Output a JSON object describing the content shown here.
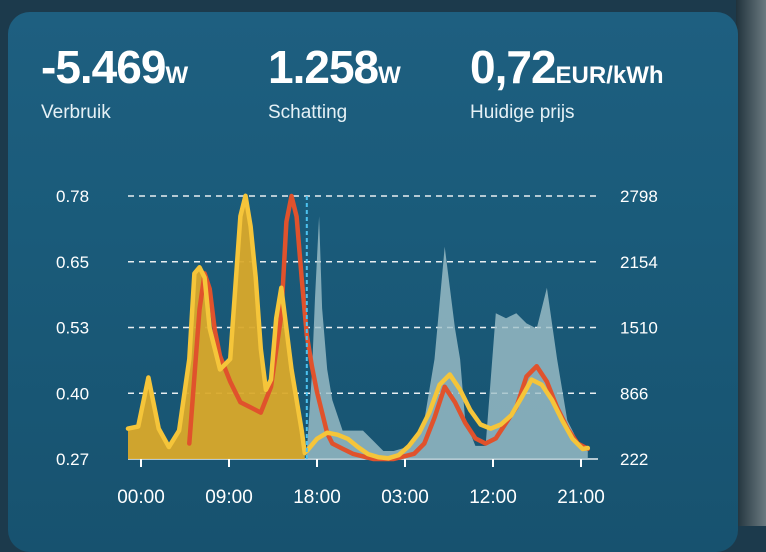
{
  "stats": [
    {
      "value": "-5.469",
      "unit": "W",
      "label": "Verbruik"
    },
    {
      "value": "1.258",
      "unit": "W",
      "label": "Schatting"
    },
    {
      "value": "0,72",
      "unit": "EUR/kWh",
      "label": "Huidige prijs"
    }
  ],
  "colors": {
    "card_bg": "#1b5a79",
    "yellow": "#f5c53a",
    "yellow_fill": "#d9a92a",
    "red": "#e0522c",
    "grey_fill": "#9fc0c9",
    "now_marker": "#4cc3f0"
  },
  "chart_data": {
    "type": "line",
    "x_labels": [
      "00:00",
      "09:00",
      "18:00",
      "03:00",
      "12:00",
      "21:00"
    ],
    "y_left_ticks": [
      "0.78",
      "0.65",
      "0.53",
      "0.40",
      "0.27"
    ],
    "y_right_ticks": [
      "2798",
      "2154",
      "1510",
      "866",
      "222"
    ],
    "y_left_range": [
      0.27,
      0.78
    ],
    "y_right_range": [
      222,
      2798
    ],
    "grid": true,
    "series": [
      {
        "kind": "area",
        "color": "#f5c53a",
        "axis": "right",
        "x": [
          0,
          1,
          2,
          3,
          4,
          5,
          6,
          6.5,
          7,
          7.5,
          8,
          9,
          10,
          11,
          11.5,
          12,
          12.5,
          13,
          13.5,
          14,
          14.5,
          15,
          16,
          17,
          17.3
        ],
        "values": [
          520,
          540,
          1020,
          520,
          340,
          500,
          1200,
          2040,
          2100,
          2000,
          1500,
          1100,
          1200,
          2600,
          2800,
          2500,
          2000,
          1300,
          900,
          1000,
          1600,
          1900,
          1100,
          500,
          280
        ]
      },
      {
        "kind": "area",
        "color": "#9fc0c9",
        "axis": "right",
        "x": [
          17.5,
          18,
          18.3,
          18.7,
          19,
          19.5,
          20,
          21,
          22,
          23,
          24,
          25,
          26,
          27,
          28,
          29,
          30,
          31,
          32,
          32.5,
          33,
          34,
          35,
          36,
          37,
          38,
          39,
          40,
          41,
          42,
          43,
          44,
          45
        ],
        "values": [
          300,
          1050,
          1800,
          2600,
          1700,
          1100,
          800,
          500,
          500,
          500,
          400,
          300,
          300,
          330,
          380,
          600,
          1200,
          2300,
          1500,
          1200,
          600,
          350,
          350,
          1650,
          1600,
          1650,
          1550,
          1500,
          1900,
          1200,
          600,
          400,
          300
        ]
      },
      {
        "kind": "line",
        "color": "#e0522c",
        "axis": "left",
        "x": [
          6,
          7,
          7.5,
          8,
          8.5,
          9,
          10,
          11,
          12,
          13,
          14,
          15,
          15.5,
          16,
          16.5,
          17,
          17.5,
          18,
          18.5,
          19,
          19.5,
          20,
          21,
          22,
          24,
          26,
          28,
          29,
          30,
          31,
          32,
          33,
          34,
          35,
          36,
          37,
          38,
          39,
          40,
          41,
          42,
          43,
          44,
          45
        ],
        "values": [
          0.3,
          0.56,
          0.63,
          0.6,
          0.52,
          0.47,
          0.42,
          0.38,
          0.37,
          0.36,
          0.41,
          0.55,
          0.73,
          0.78,
          0.74,
          0.62,
          0.51,
          0.45,
          0.4,
          0.36,
          0.32,
          0.3,
          0.29,
          0.28,
          0.27,
          0.27,
          0.28,
          0.3,
          0.35,
          0.41,
          0.38,
          0.34,
          0.31,
          0.3,
          0.31,
          0.34,
          0.37,
          0.43,
          0.45,
          0.42,
          0.37,
          0.33,
          0.3,
          0.29
        ]
      },
      {
        "kind": "line",
        "color": "#f5c53a",
        "axis": "right",
        "x": [
          0,
          1,
          2,
          3,
          4,
          5,
          6,
          6.5,
          7,
          7.5,
          8,
          9,
          10,
          11,
          11.5,
          12,
          12.5,
          13,
          13.5,
          14,
          14.5,
          15,
          16,
          17,
          17.3
        ],
        "values": [
          520,
          540,
          1020,
          520,
          340,
          500,
          1200,
          2040,
          2100,
          2000,
          1500,
          1100,
          1200,
          2600,
          2800,
          2500,
          2000,
          1300,
          900,
          1000,
          1600,
          1900,
          1100,
          500,
          280
        ]
      },
      {
        "kind": "line",
        "color": "#f5c53a",
        "axis": "right",
        "x": [
          17.5,
          18.5,
          19.5,
          20.5,
          21.5,
          22.5,
          23.5,
          24.5,
          25.5,
          26.5,
          27.5,
          28.5,
          29.5,
          30.5,
          31.5,
          32.5,
          33.5,
          34.5,
          35.5,
          36.5,
          37.5,
          38.5,
          39.5,
          40.5,
          41.5,
          42.5,
          43.5,
          44.5,
          45
        ],
        "values": [
          300,
          420,
          480,
          460,
          420,
          340,
          270,
          240,
          230,
          260,
          350,
          480,
          680,
          950,
          1050,
          900,
          700,
          560,
          520,
          560,
          650,
          820,
          1000,
          950,
          800,
          600,
          420,
          320,
          330
        ]
      }
    ],
    "now_index_x": 17.5,
    "x_range": [
      0,
      46
    ]
  }
}
